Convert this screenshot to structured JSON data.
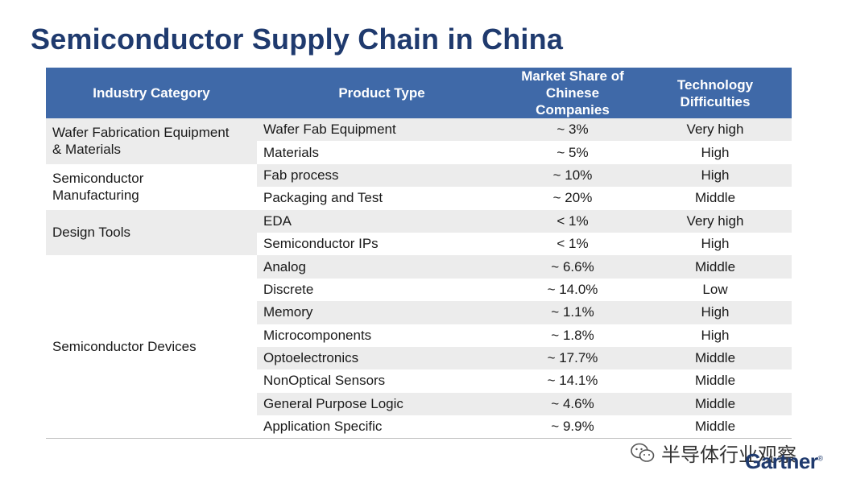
{
  "title": "Semiconductor Supply Chain in China",
  "headers": {
    "category": "Industry Category",
    "product": "Product Type",
    "share_line1": "Market Share of",
    "share_line2": "Chinese Companies",
    "difficulty_line1": "Technology",
    "difficulty_line2": "Difficulties"
  },
  "groups": [
    {
      "category_line1": "Wafer Fabrication Equipment",
      "category_line2": "& Materials",
      "rows": [
        {
          "product": "Wafer Fab Equipment",
          "share": "~ 3%",
          "difficulty": "Very high"
        },
        {
          "product": "Materials",
          "share": "~ 5%",
          "difficulty": "High"
        }
      ]
    },
    {
      "category_line1": "Semiconductor",
      "category_line2": "Manufacturing",
      "rows": [
        {
          "product": "Fab process",
          "share": "~ 10%",
          "difficulty": "High"
        },
        {
          "product": "Packaging and Test",
          "share": "~ 20%",
          "difficulty": "Middle"
        }
      ]
    },
    {
      "category_line1": "Design Tools",
      "category_line2": "",
      "rows": [
        {
          "product": "EDA",
          "share": "< 1%",
          "difficulty": "Very high"
        },
        {
          "product": "Semiconductor IPs",
          "share": "< 1%",
          "difficulty": "High"
        }
      ]
    },
    {
      "category_line1": "Semiconductor Devices",
      "category_line2": "",
      "rows": [
        {
          "product": "Analog",
          "share": "~ 6.6%",
          "difficulty": "Middle"
        },
        {
          "product": "Discrete",
          "share": "~ 14.0%",
          "difficulty": "Low"
        },
        {
          "product": "Memory",
          "share": "~ 1.1%",
          "difficulty": "High"
        },
        {
          "product": "Microcomponents",
          "share": "~ 1.8%",
          "difficulty": "High"
        },
        {
          "product": "Optoelectronics",
          "share": "~ 17.7%",
          "difficulty": "Middle"
        },
        {
          "product": "NonOptical Sensors",
          "share": "~ 14.1%",
          "difficulty": "Middle"
        },
        {
          "product": "General Purpose Logic",
          "share": "~ 4.6%",
          "difficulty": "Middle"
        },
        {
          "product": "Application Specific",
          "share": "~ 9.9%",
          "difficulty": "Middle"
        }
      ]
    }
  ],
  "watermark": {
    "text": "半导体行业观察",
    "icon": "wechat-icon"
  },
  "logo": {
    "text": "Gartner",
    "mark": "®"
  },
  "colors": {
    "header_bg": "#3f69a8",
    "title": "#1f3a6e",
    "row_shade": "#ececec"
  }
}
